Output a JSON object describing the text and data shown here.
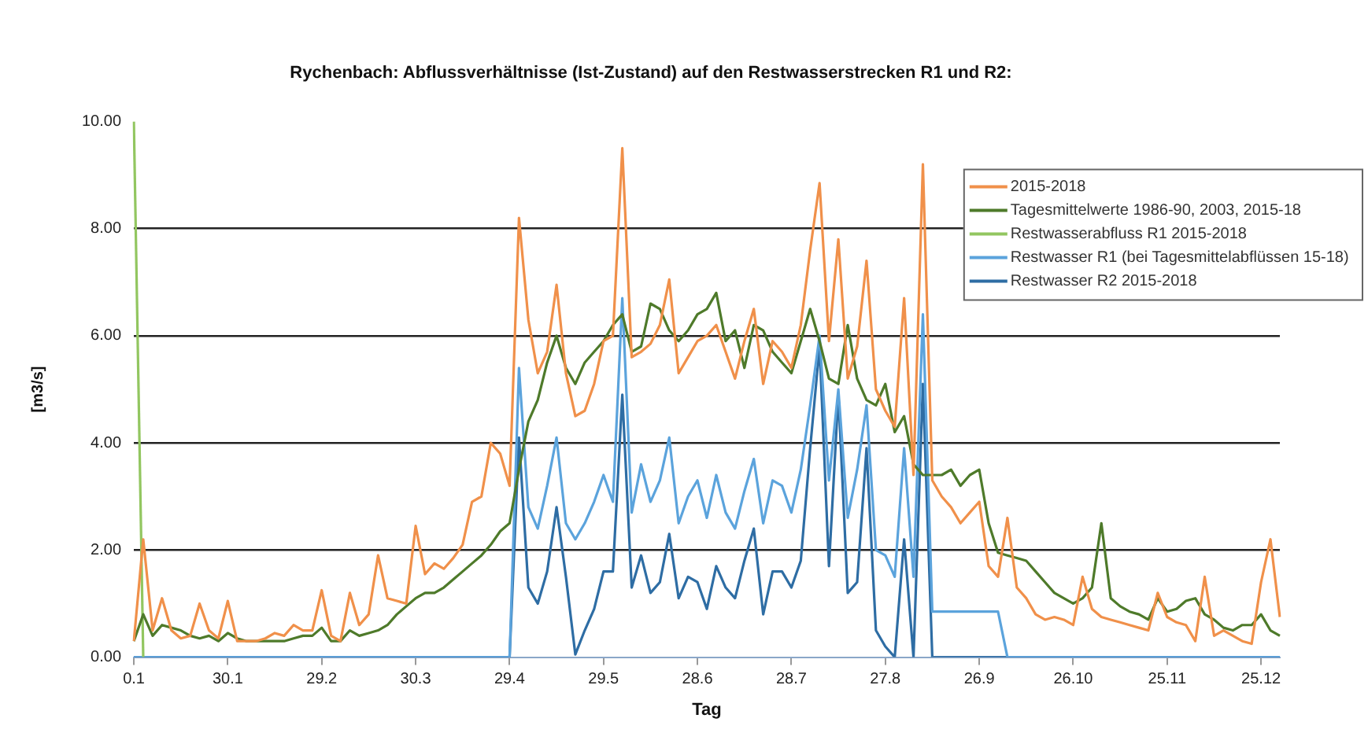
{
  "chart_data": {
    "type": "line",
    "title": "Rychenbach: Abflussverhältnisse (Ist-Zustand) auf den Restwasserstrecken R1 und R2:",
    "xlabel": "Tag",
    "ylabel": "[m3/s]",
    "categories": [
      "0.1",
      null,
      null,
      null,
      null,
      null,
      null,
      null,
      null,
      null,
      "30.1",
      null,
      null,
      null,
      null,
      null,
      null,
      null,
      null,
      null,
      "29.2",
      null,
      null,
      null,
      null,
      null,
      null,
      null,
      null,
      null,
      "30.3",
      null,
      null,
      null,
      null,
      null,
      null,
      null,
      null,
      null,
      "29.4",
      null,
      null,
      null,
      null,
      null,
      null,
      null,
      null,
      null,
      "29.5",
      null,
      null,
      null,
      null,
      null,
      null,
      null,
      null,
      null,
      "28.6",
      null,
      null,
      null,
      null,
      null,
      null,
      null,
      null,
      null,
      "28.7",
      null,
      null,
      null,
      null,
      null,
      null,
      null,
      null,
      null,
      "27.8",
      null,
      null,
      null,
      null,
      null,
      null,
      null,
      null,
      null,
      "26.9",
      null,
      null,
      null,
      null,
      null,
      null,
      null,
      null,
      null,
      "26.10",
      null,
      null,
      null,
      null,
      null,
      null,
      null,
      null,
      null,
      "25.11",
      null,
      null,
      null,
      null,
      null,
      null,
      null,
      null,
      null,
      "25.12",
      null,
      null
    ],
    "ylim": [
      0,
      10
    ],
    "yticks": [
      {
        "value": 0,
        "label": "0.00"
      },
      {
        "value": 2,
        "label": "2.00"
      },
      {
        "value": 4,
        "label": "4.00"
      },
      {
        "value": 6,
        "label": "6.00"
      },
      {
        "value": 8,
        "label": "8.00"
      },
      {
        "value": 10,
        "label": "10.00"
      }
    ],
    "grid": "y",
    "legend": "top right",
    "marker": "none",
    "line_style": "solid",
    "series": [
      {
        "name": "2015-2018",
        "color": "#f0904a",
        "values": [
          0.3,
          2.2,
          0.5,
          1.1,
          0.5,
          0.35,
          0.4,
          1.0,
          0.5,
          0.35,
          1.05,
          0.3,
          0.3,
          0.3,
          0.35,
          0.45,
          0.4,
          0.6,
          0.5,
          0.5,
          1.25,
          0.4,
          0.3,
          1.2,
          0.6,
          0.8,
          1.9,
          1.1,
          1.05,
          1.0,
          2.45,
          1.55,
          1.75,
          1.65,
          1.85,
          2.1,
          2.9,
          3.0,
          4.0,
          3.8,
          3.2,
          8.2,
          6.3,
          5.3,
          5.7,
          6.95,
          5.3,
          4.5,
          4.6,
          5.1,
          5.9,
          6.0,
          9.5,
          5.6,
          5.7,
          5.85,
          6.2,
          7.05,
          5.3,
          5.6,
          5.9,
          6.0,
          6.2,
          5.7,
          5.2,
          5.9,
          6.5,
          5.1,
          5.9,
          5.7,
          5.4,
          6.2,
          7.6,
          8.85,
          5.9,
          7.8,
          5.2,
          5.8,
          7.4,
          5.0,
          4.6,
          4.3,
          6.7,
          3.4,
          9.2,
          3.3,
          3.0,
          2.8,
          2.5,
          2.7,
          2.9,
          1.7,
          1.5,
          2.6,
          1.3,
          1.1,
          0.8,
          0.7,
          0.75,
          0.7,
          0.6,
          1.5,
          0.9,
          0.75,
          0.7,
          0.65,
          0.6,
          0.55,
          0.5,
          1.2,
          0.75,
          0.65,
          0.6,
          0.3,
          1.5,
          0.4,
          0.5,
          0.4,
          0.3,
          0.25,
          1.4,
          2.2,
          0.75
        ]
      },
      {
        "name": "Tagesmittelwerte 1986-90, 2003, 2015-18",
        "color": "#4e7a2a",
        "values": [
          0.3,
          0.8,
          0.4,
          0.6,
          0.55,
          0.5,
          0.4,
          0.35,
          0.4,
          0.3,
          0.45,
          0.35,
          0.3,
          0.3,
          0.3,
          0.3,
          0.3,
          0.35,
          0.4,
          0.4,
          0.55,
          0.3,
          0.3,
          0.5,
          0.4,
          0.45,
          0.5,
          0.6,
          0.8,
          0.95,
          1.1,
          1.2,
          1.2,
          1.3,
          1.45,
          1.6,
          1.75,
          1.9,
          2.1,
          2.35,
          2.5,
          3.5,
          4.4,
          4.8,
          5.5,
          6.0,
          5.4,
          5.1,
          5.5,
          5.7,
          5.9,
          6.2,
          6.4,
          5.7,
          5.8,
          6.6,
          6.5,
          6.1,
          5.9,
          6.1,
          6.4,
          6.5,
          6.8,
          5.9,
          6.1,
          5.4,
          6.2,
          6.1,
          5.7,
          5.5,
          5.3,
          5.9,
          6.5,
          5.9,
          5.2,
          5.1,
          6.2,
          5.2,
          4.8,
          4.7,
          5.1,
          4.2,
          4.5,
          3.6,
          3.4,
          3.4,
          3.4,
          3.5,
          3.2,
          3.4,
          3.5,
          2.5,
          1.95,
          1.9,
          1.85,
          1.8,
          1.6,
          1.4,
          1.2,
          1.1,
          1.0,
          1.1,
          1.3,
          2.5,
          1.1,
          0.95,
          0.85,
          0.8,
          0.7,
          1.1,
          0.85,
          0.9,
          1.05,
          1.1,
          0.8,
          0.7,
          0.55,
          0.5,
          0.6,
          0.6,
          0.8,
          0.5,
          0.4
        ]
      },
      {
        "name": "Restwasserabfluss R1 2015-2018",
        "color": "#92c660",
        "values": [
          10,
          0,
          null,
          null,
          null,
          null,
          null,
          null,
          null,
          null,
          null,
          null,
          null,
          null,
          null,
          null,
          null,
          null,
          null,
          null,
          null,
          null,
          null,
          null,
          null,
          null,
          null,
          null,
          null,
          null,
          null,
          null,
          null,
          null,
          null,
          null,
          null,
          null,
          null,
          null,
          null,
          null,
          null,
          null,
          null,
          null,
          null,
          null,
          null,
          null,
          null,
          null,
          null,
          null,
          null,
          null,
          null,
          null,
          null,
          null,
          null,
          null,
          null,
          null,
          null,
          null,
          null,
          null,
          null,
          null,
          null,
          null,
          null,
          null,
          null,
          null,
          null,
          null,
          null,
          null,
          null,
          null,
          null,
          null,
          null,
          null,
          null,
          null,
          null,
          null,
          null,
          null,
          null,
          null,
          null,
          null,
          null,
          null,
          null,
          null,
          null,
          null,
          null,
          null,
          null,
          null,
          null,
          null,
          null,
          null,
          null,
          null,
          null,
          null,
          null,
          null,
          null,
          null,
          null,
          null,
          null,
          null,
          null
        ]
      },
      {
        "name": "Restwasser R1 (bei Tagesmittelabflüssen 15-18)",
        "color": "#5ba3dc",
        "values": [
          0,
          0,
          0,
          0,
          0,
          0,
          0,
          0,
          0,
          0,
          0,
          0,
          0,
          0,
          0,
          0,
          0,
          0,
          0,
          0,
          0,
          0,
          0,
          0,
          0,
          0,
          0,
          0,
          0,
          0,
          0,
          0,
          0,
          0,
          0,
          0,
          0,
          0,
          0,
          0,
          0,
          5.4,
          2.8,
          2.4,
          3.2,
          4.1,
          2.5,
          2.2,
          2.5,
          2.9,
          3.4,
          2.9,
          6.7,
          2.7,
          3.6,
          2.9,
          3.3,
          4.1,
          2.5,
          3.0,
          3.3,
          2.6,
          3.4,
          2.7,
          2.4,
          3.1,
          3.7,
          2.5,
          3.3,
          3.2,
          2.7,
          3.5,
          4.7,
          6.0,
          3.3,
          5.0,
          2.6,
          3.5,
          4.7,
          2.0,
          1.9,
          1.5,
          3.9,
          1.5,
          6.4,
          0.85,
          0.85,
          0.85,
          0.85,
          0.85,
          0.85,
          0.85,
          0.85,
          0,
          0,
          0,
          0,
          0,
          0,
          0,
          0,
          0,
          0,
          0,
          0,
          0,
          0,
          0,
          0,
          0,
          0,
          0,
          0,
          0,
          0,
          0,
          0,
          0,
          0,
          0,
          0,
          0,
          0
        ]
      },
      {
        "name": "Restwasser R2 2015-2018",
        "color": "#2e6da4",
        "values": [
          0,
          0,
          0,
          0,
          0,
          0,
          0,
          0,
          0,
          0,
          0,
          0,
          0,
          0,
          0,
          0,
          0,
          0,
          0,
          0,
          0,
          0,
          0,
          0,
          0,
          0,
          0,
          0,
          0,
          0,
          0,
          0,
          0,
          0,
          0,
          0,
          0,
          0,
          0,
          0,
          0,
          4.1,
          1.3,
          1.0,
          1.6,
          2.8,
          1.5,
          0.05,
          0.5,
          0.9,
          1.6,
          1.6,
          4.9,
          1.3,
          1.9,
          1.2,
          1.4,
          2.3,
          1.1,
          1.5,
          1.4,
          0.9,
          1.7,
          1.3,
          1.1,
          1.8,
          2.4,
          0.8,
          1.6,
          1.6,
          1.3,
          1.8,
          3.9,
          5.8,
          1.7,
          4.9,
          1.2,
          1.4,
          3.9,
          0.5,
          0.2,
          0,
          2.2,
          0,
          5.1,
          0,
          0,
          0,
          0,
          0,
          0,
          0,
          0,
          0,
          0,
          0,
          0,
          0,
          0,
          0,
          0,
          0,
          0,
          0,
          0,
          0,
          0,
          0,
          0,
          0,
          0,
          0,
          0,
          0,
          0,
          0,
          0,
          0,
          0,
          0,
          0,
          0,
          0
        ]
      }
    ]
  }
}
